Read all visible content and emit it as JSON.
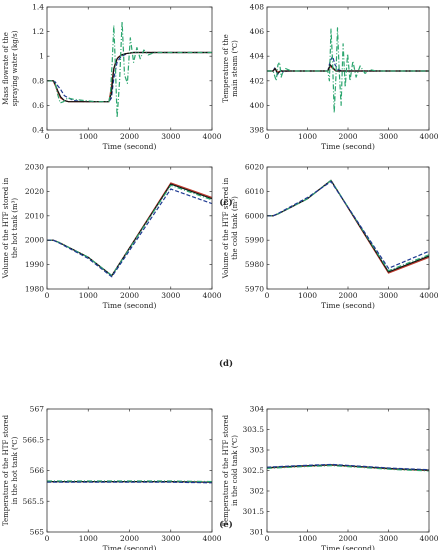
{
  "figure": {
    "panel_labels": [
      "(c)",
      "(d)",
      "(e)"
    ]
  },
  "chart_data": [
    {
      "type": "line",
      "xlabel": "Time (second)",
      "ylabel": [
        "Mass flowrate of the",
        "spraying water (kg/s)"
      ],
      "xlim": [
        0,
        4000
      ],
      "ylim": [
        0.4,
        1.4
      ],
      "xticks": [
        0,
        1000,
        2000,
        3000,
        4000
      ],
      "yticks": [
        0.4,
        0.6,
        0.8,
        1.0,
        1.2,
        1.4
      ],
      "ytick_labels": [
        "0.4",
        "0.6",
        "0.8",
        "1",
        "1.2",
        "1.4"
      ],
      "grid": false,
      "series": [
        {
          "color": "#1f3a93",
          "dash": "4,2",
          "x": [
            0,
            150,
            200,
            260,
            330,
            420,
            520,
            650,
            900,
            1200,
            1500,
            1560,
            1620,
            1700,
            1800,
            1950,
            2100,
            2400,
            3000,
            4000
          ],
          "y": [
            0.8,
            0.8,
            0.79,
            0.76,
            0.73,
            0.68,
            0.66,
            0.64,
            0.63,
            0.63,
            0.63,
            0.66,
            0.82,
            0.95,
            1.0,
            1.02,
            1.03,
            1.03,
            1.03,
            1.03
          ]
        },
        {
          "color": "#c0392b",
          "dash": "",
          "x": [
            0,
            150,
            200,
            260,
            330,
            420,
            520,
            650,
            900,
            1200,
            1500,
            1560,
            1600,
            1650,
            1720,
            1800,
            1900,
            2100,
            2400,
            3000,
            4000
          ],
          "y": [
            0.8,
            0.8,
            0.76,
            0.71,
            0.66,
            0.64,
            0.63,
            0.63,
            0.63,
            0.63,
            0.63,
            0.75,
            0.86,
            0.94,
            0.99,
            1.01,
            1.02,
            1.03,
            1.03,
            1.03,
            1.03
          ]
        },
        {
          "color": "#111111",
          "dash": "",
          "x": [
            0,
            150,
            200,
            260,
            330,
            420,
            520,
            650,
            900,
            1200,
            1500,
            1560,
            1620,
            1700,
            1800,
            1900,
            2100,
            2400,
            3000,
            4000
          ],
          "y": [
            0.8,
            0.8,
            0.77,
            0.72,
            0.67,
            0.64,
            0.63,
            0.63,
            0.63,
            0.63,
            0.63,
            0.7,
            0.9,
            0.98,
            1.01,
            1.02,
            1.03,
            1.03,
            1.03,
            1.03
          ]
        },
        {
          "color": "#2ca66f",
          "dash": "5,2,1,2",
          "x": [
            0,
            150,
            200,
            250,
            320,
            400,
            500,
            650,
            900,
            1200,
            1500,
            1540,
            1580,
            1620,
            1660,
            1700,
            1760,
            1820,
            1880,
            1950,
            2020,
            2100,
            2180,
            2260,
            2350,
            2450,
            2600,
            2800,
            3000,
            4000
          ],
          "y": [
            0.8,
            0.8,
            0.78,
            0.7,
            0.62,
            0.63,
            0.66,
            0.65,
            0.64,
            0.63,
            0.63,
            0.7,
            0.95,
            1.25,
            0.9,
            0.5,
            0.8,
            1.28,
            0.85,
            0.78,
            1.15,
            0.95,
            1.07,
            0.98,
            1.05,
            1.01,
            1.03,
            1.03,
            1.03,
            1.03
          ]
        }
      ]
    },
    {
      "type": "line",
      "xlabel": "Time (second)",
      "ylabel": [
        "Temperature of the",
        "main steam (℃)"
      ],
      "xlim": [
        0,
        4000
      ],
      "ylim": [
        398,
        408
      ],
      "xticks": [
        0,
        1000,
        2000,
        3000,
        4000
      ],
      "yticks": [
        398,
        400,
        402,
        404,
        406,
        408
      ],
      "ytick_labels": [
        "398",
        "400",
        "402",
        "404",
        "406",
        "408"
      ],
      "grid": false,
      "series": [
        {
          "color": "#1f3a93",
          "dash": "4,2",
          "x": [
            0,
            150,
            200,
            260,
            320,
            400,
            500,
            800,
            1200,
            1500,
            1560,
            1620,
            1680,
            1760,
            1850,
            2000,
            2300,
            3000,
            4000
          ],
          "y": [
            402.8,
            402.8,
            403.1,
            402.5,
            402.9,
            402.7,
            402.8,
            402.8,
            402.8,
            402.8,
            403.6,
            404.0,
            403.3,
            402.9,
            402.8,
            402.8,
            402.8,
            402.8,
            402.8
          ]
        },
        {
          "color": "#c0392b",
          "dash": "",
          "x": [
            0,
            150,
            200,
            260,
            340,
            500,
            800,
            1200,
            1500,
            1560,
            1620,
            1700,
            1800,
            2000,
            2500,
            3000,
            4000
          ],
          "y": [
            402.8,
            402.8,
            403.0,
            402.7,
            402.8,
            402.8,
            402.8,
            402.8,
            402.8,
            403.2,
            403.0,
            402.8,
            402.8,
            402.8,
            402.8,
            402.8,
            402.8
          ]
        },
        {
          "color": "#111111",
          "dash": "",
          "x": [
            0,
            150,
            200,
            260,
            340,
            500,
            800,
            1200,
            1500,
            1560,
            1620,
            1700,
            1800,
            2000,
            2500,
            3000,
            4000
          ],
          "y": [
            402.8,
            402.8,
            403.0,
            402.6,
            402.8,
            402.8,
            402.8,
            402.8,
            402.8,
            403.3,
            403.1,
            402.8,
            402.8,
            402.8,
            402.8,
            402.8,
            402.8
          ]
        },
        {
          "color": "#2ca66f",
          "dash": "5,2,1,2",
          "x": [
            0,
            150,
            190,
            230,
            270,
            310,
            350,
            400,
            460,
            600,
            900,
            1200,
            1500,
            1540,
            1580,
            1620,
            1660,
            1700,
            1740,
            1780,
            1830,
            1880,
            1930,
            1990,
            2050,
            2120,
            2200,
            2300,
            2420,
            2550,
            2700,
            3000,
            4000
          ],
          "y": [
            402.8,
            402.8,
            402.4,
            402.0,
            403.3,
            403.5,
            402.3,
            402.8,
            403.0,
            402.8,
            402.8,
            402.8,
            402.8,
            402.0,
            406.2,
            403.5,
            399.4,
            402.3,
            406.3,
            403.0,
            400.0,
            405.0,
            401.5,
            404.2,
            402.0,
            403.6,
            402.3,
            403.2,
            402.6,
            402.9,
            402.8,
            402.8,
            402.8
          ]
        }
      ]
    },
    {
      "type": "line",
      "xlabel": "Time (second)",
      "ylabel": [
        "Volume of the HTF stored in",
        "the hot tank (m³)"
      ],
      "xlim": [
        0,
        4000
      ],
      "ylim": [
        1980,
        2030
      ],
      "xticks": [
        0,
        1000,
        2000,
        3000,
        4000
      ],
      "yticks": [
        1980,
        1990,
        2000,
        2010,
        2020,
        2030
      ],
      "ytick_labels": [
        "1980",
        "1990",
        "2000",
        "2010",
        "2020",
        "2030"
      ],
      "grid": false,
      "series": [
        {
          "color": "#c0392b",
          "dash": "",
          "x": [
            0,
            150,
            300,
            1000,
            1570,
            3000,
            4000
          ],
          "y": [
            2000,
            2000,
            1999,
            1993,
            1985.5,
            2023.5,
            2017.5
          ]
        },
        {
          "color": "#111111",
          "dash": "",
          "x": [
            0,
            150,
            300,
            1000,
            1570,
            3000,
            4000
          ],
          "y": [
            2000,
            2000,
            1999,
            1993,
            1985.5,
            2023,
            2017
          ]
        },
        {
          "color": "#2ca66f",
          "dash": "5,2,1,2",
          "x": [
            0,
            150,
            300,
            1000,
            1570,
            3000,
            4000
          ],
          "y": [
            2000,
            2000,
            1999,
            1993,
            1985.5,
            2022.5,
            2016.5
          ]
        },
        {
          "color": "#1f3a93",
          "dash": "4,2",
          "x": [
            0,
            150,
            300,
            1000,
            1570,
            3000,
            4000
          ],
          "y": [
            2000,
            2000,
            1998.8,
            1992.5,
            1985,
            2021,
            2015
          ]
        }
      ]
    },
    {
      "type": "line",
      "xlabel": "Time (second)",
      "ylabel": [
        "Volume of the HTF stored in",
        "the cold tank (m³)"
      ],
      "xlim": [
        0,
        4000
      ],
      "ylim": [
        5970,
        6020
      ],
      "xticks": [
        0,
        1000,
        2000,
        3000,
        4000
      ],
      "yticks": [
        5970,
        5980,
        5990,
        6000,
        6010,
        6020
      ],
      "ytick_labels": [
        "5970",
        "5980",
        "5990",
        "6000",
        "6010",
        "6020"
      ],
      "grid": false,
      "series": [
        {
          "color": "#c0392b",
          "dash": "",
          "x": [
            0,
            150,
            300,
            1000,
            1580,
            3000,
            4000
          ],
          "y": [
            6000,
            6000,
            6001,
            6007,
            6014.5,
            5976.5,
            5983
          ]
        },
        {
          "color": "#111111",
          "dash": "",
          "x": [
            0,
            150,
            300,
            1000,
            1580,
            3000,
            4000
          ],
          "y": [
            6000,
            6000,
            6001,
            6007,
            6014.5,
            5977,
            5983.5
          ]
        },
        {
          "color": "#2ca66f",
          "dash": "5,2,1,2",
          "x": [
            0,
            150,
            300,
            1000,
            1580,
            3000,
            4000
          ],
          "y": [
            6000,
            6000,
            6001,
            6007,
            6014.5,
            5977.5,
            5984
          ]
        },
        {
          "color": "#1f3a93",
          "dash": "4,2",
          "x": [
            0,
            150,
            300,
            1000,
            1580,
            3000,
            4000
          ],
          "y": [
            6000,
            6000,
            6001.2,
            6007.5,
            6014,
            5978.5,
            5985.5
          ]
        }
      ]
    },
    {
      "type": "line",
      "xlabel": "Time (second)",
      "ylabel": [
        "Temperature of the HTF stored",
        "in the hot tank (℃)"
      ],
      "xlim": [
        0,
        4000
      ],
      "ylim": [
        565,
        567
      ],
      "xticks": [
        0,
        1000,
        2000,
        3000,
        4000
      ],
      "yticks": [
        565,
        565.5,
        566,
        566.5,
        567
      ],
      "ytick_labels": [
        "565",
        "565.5",
        "566",
        "566.5",
        "567"
      ],
      "grid": false,
      "series": [
        {
          "color": "#c0392b",
          "dash": "",
          "x": [
            0,
            1000,
            2000,
            3000,
            4000
          ],
          "y": [
            565.82,
            565.82,
            565.82,
            565.82,
            565.81
          ]
        },
        {
          "color": "#111111",
          "dash": "",
          "x": [
            0,
            1000,
            2000,
            3000,
            4000
          ],
          "y": [
            565.82,
            565.82,
            565.82,
            565.82,
            565.81
          ]
        },
        {
          "color": "#2ca66f",
          "dash": "5,2,1,2",
          "x": [
            0,
            1000,
            2000,
            3000,
            4000
          ],
          "y": [
            565.83,
            565.83,
            565.83,
            565.83,
            565.82
          ]
        },
        {
          "color": "#1f3a93",
          "dash": "4,2",
          "x": [
            0,
            1000,
            2000,
            3000,
            4000
          ],
          "y": [
            565.81,
            565.81,
            565.81,
            565.81,
            565.8
          ]
        }
      ]
    },
    {
      "type": "line",
      "xlabel": "Time (second)",
      "ylabel": [
        "Temperature of the HTF stored",
        "in the cold tank (℃)"
      ],
      "xlim": [
        0,
        4000
      ],
      "ylim": [
        301,
        304
      ],
      "xticks": [
        0,
        1000,
        2000,
        3000,
        4000
      ],
      "yticks": [
        301,
        301.5,
        302,
        302.5,
        303,
        303.5,
        304
      ],
      "ytick_labels": [
        "301",
        "301.5",
        "302",
        "302.5",
        "303",
        "303.5",
        "304"
      ],
      "grid": false,
      "series": [
        {
          "color": "#c0392b",
          "dash": "",
          "x": [
            0,
            800,
            1600,
            2400,
            3200,
            4000
          ],
          "y": [
            302.56,
            302.6,
            302.63,
            302.58,
            302.53,
            302.5
          ]
        },
        {
          "color": "#111111",
          "dash": "",
          "x": [
            0,
            800,
            1600,
            2400,
            3200,
            4000
          ],
          "y": [
            302.57,
            302.61,
            302.64,
            302.59,
            302.54,
            302.51
          ]
        },
        {
          "color": "#2ca66f",
          "dash": "5,2,1,2",
          "x": [
            0,
            800,
            1600,
            2400,
            3200,
            4000
          ],
          "y": [
            302.55,
            302.59,
            302.62,
            302.57,
            302.52,
            302.49
          ]
        },
        {
          "color": "#1f3a93",
          "dash": "4,2",
          "x": [
            0,
            800,
            1600,
            2400,
            3200,
            4000
          ],
          "y": [
            302.58,
            302.62,
            302.65,
            302.6,
            302.55,
            302.52
          ]
        }
      ]
    }
  ]
}
